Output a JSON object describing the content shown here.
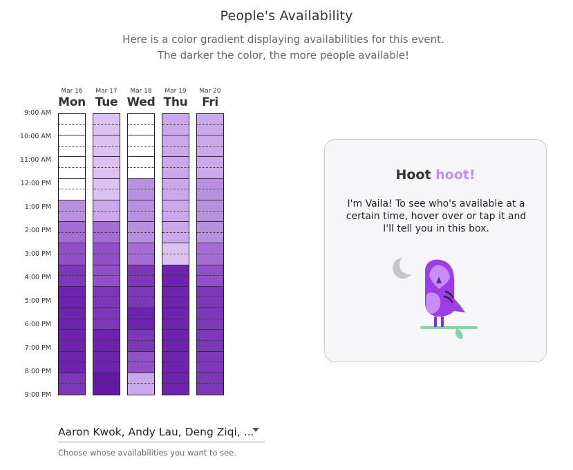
{
  "header": {
    "title": "People's Availability",
    "subtitle": "Here is a color gradient displaying availabilities for this event. The darker the color, the more people available!"
  },
  "time_labels": [
    "9:00 AM",
    "10:00 AM",
    "11:00 AM",
    "12:00 PM",
    "1:00 PM",
    "2:00 PM",
    "3:00 PM",
    "4:00 PM",
    "5:00 PM",
    "6:00 PM",
    "7:00 PM",
    "8:00 PM",
    "9:00 PM"
  ],
  "colors": {
    "palette": [
      "#ffffff",
      "#dcc2f3",
      "#cba7ec",
      "#b88fe1",
      "#a56cd5",
      "#9150c8",
      "#7d37bb",
      "#6e23b0",
      "#6517a8"
    ]
  },
  "days": [
    {
      "date": "Mar 16",
      "name": "Mon",
      "levels": [
        0,
        0,
        0,
        0,
        0,
        0,
        0,
        0,
        3,
        3,
        4,
        4,
        5,
        5,
        6,
        6,
        7,
        7,
        7,
        7,
        7,
        7,
        7,
        7,
        6,
        6
      ]
    },
    {
      "date": "Mar 17",
      "name": "Tue",
      "levels": [
        1,
        1,
        1,
        1,
        1,
        1,
        1,
        1,
        2,
        2,
        4,
        4,
        5,
        5,
        5,
        5,
        6,
        6,
        6,
        6,
        7,
        7,
        7,
        7,
        8,
        8
      ]
    },
    {
      "date": "Mar 18",
      "name": "Wed",
      "levels": [
        0,
        0,
        0,
        0,
        0,
        0,
        3,
        3,
        3,
        3,
        3,
        3,
        4,
        4,
        6,
        6,
        6,
        6,
        7,
        7,
        6,
        6,
        5,
        5,
        2,
        2
      ]
    },
    {
      "date": "Mar 19",
      "name": "Thu",
      "levels": [
        2,
        2,
        2,
        2,
        2,
        2,
        2,
        2,
        2,
        2,
        2,
        2,
        1,
        1,
        7,
        7,
        7,
        7,
        7,
        7,
        7,
        7,
        7,
        7,
        7,
        7
      ]
    },
    {
      "date": "Mar 20",
      "name": "Fri",
      "levels": [
        2,
        2,
        2,
        2,
        2,
        2,
        3,
        3,
        3,
        3,
        3,
        3,
        4,
        4,
        5,
        5,
        6,
        6,
        6,
        6,
        6,
        6,
        6,
        6,
        6,
        6
      ]
    }
  ],
  "info": {
    "title_main": "Hoot ",
    "title_accent": "hoot!",
    "text": "I'm Vaila! To see who's available at a certain time, hover over or tap it and I'll tell you in this box."
  },
  "people_select": {
    "value": "Aaron Kwok, Andy Lau, Deng Ziqi, ...",
    "helper": "Choose whose availabilities you want to see."
  }
}
